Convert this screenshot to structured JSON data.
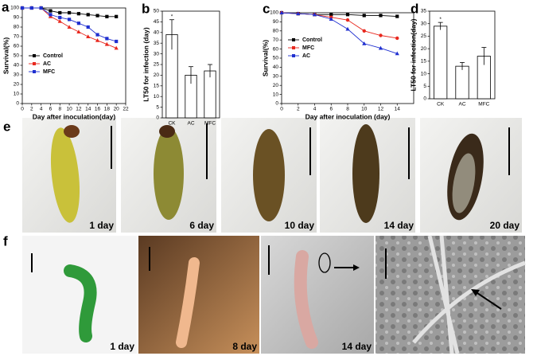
{
  "chart_data": [
    {
      "type": "line",
      "panel": "a",
      "xlabel": "Day after inoculation(day)",
      "ylabel": "Survival(%)",
      "x": [
        0,
        2,
        4,
        6,
        8,
        10,
        12,
        14,
        16,
        18,
        20
      ],
      "xlim": [
        0,
        22
      ],
      "xticks": [
        0,
        2,
        4,
        6,
        8,
        10,
        12,
        14,
        16,
        18,
        20,
        22
      ],
      "ylim": [
        0,
        100
      ],
      "yticks": [
        0,
        10,
        20,
        30,
        40,
        50,
        60,
        70,
        80,
        90,
        100
      ],
      "legend": "lower left",
      "series": [
        {
          "name": "Control",
          "color": "#000000",
          "marker": "square",
          "values": [
            100,
            100,
            100,
            97,
            95,
            95,
            94,
            93,
            92,
            91,
            91
          ]
        },
        {
          "name": "AC",
          "color": "#e8281e",
          "marker": "triangle",
          "values": [
            100,
            100,
            100,
            91,
            86,
            80,
            75,
            70,
            66,
            62,
            58
          ]
        },
        {
          "name": "MFC",
          "color": "#1f2fd0",
          "marker": "square",
          "values": [
            100,
            100,
            100,
            93,
            90,
            88,
            84,
            80,
            72,
            68,
            65
          ]
        }
      ]
    },
    {
      "type": "bar",
      "panel": "b",
      "ylabel": "LT50 for infection (day)",
      "categories": [
        "CK",
        "AC",
        "MFC"
      ],
      "values": [
        39,
        20,
        22
      ],
      "errors": [
        7,
        4,
        3
      ],
      "color": "#ffffff",
      "annotation": "*",
      "ylim": [
        0,
        50
      ],
      "yticks": [
        0,
        5,
        10,
        15,
        20,
        25,
        30,
        35,
        40,
        45,
        50
      ]
    },
    {
      "type": "line",
      "panel": "c",
      "xlabel": "Day after inoculation (day)",
      "ylabel": "Survival(%)",
      "x": [
        0,
        2,
        4,
        6,
        8,
        10,
        12,
        14
      ],
      "xlim": [
        0,
        16
      ],
      "xticks": [
        0,
        2,
        4,
        6,
        8,
        10,
        12,
        14
      ],
      "ylim": [
        0,
        100
      ],
      "yticks": [
        0,
        10,
        20,
        30,
        40,
        50,
        60,
        70,
        80,
        90,
        100
      ],
      "legend": "center left",
      "series": [
        {
          "name": "Control",
          "color": "#000000",
          "marker": "square",
          "values": [
            100,
            99,
            98,
            98,
            98,
            97,
            97,
            96
          ]
        },
        {
          "name": "MFC",
          "color": "#e8281e",
          "marker": "circle",
          "values": [
            100,
            99,
            98,
            95,
            92,
            80,
            75,
            72
          ]
        },
        {
          "name": "AC",
          "color": "#1f2fd0",
          "marker": "triangle",
          "values": [
            100,
            99,
            98,
            93,
            82,
            66,
            61,
            55
          ]
        }
      ]
    },
    {
      "type": "bar",
      "panel": "d",
      "ylabel": "LT50 for infection(day)",
      "categories": [
        "CK",
        "AC",
        "MFC"
      ],
      "values": [
        29,
        13,
        17
      ],
      "errors": [
        1.5,
        1.5,
        3.5
      ],
      "color": "#ffffff",
      "annotation": "*",
      "ylim": [
        0,
        35
      ],
      "yticks": [
        0,
        5,
        10,
        15,
        20,
        25,
        30,
        35
      ]
    }
  ],
  "photos": {
    "e": {
      "panel": "e",
      "labels": [
        "1 day",
        "6 day",
        "10 day",
        "14 day",
        "20 day"
      ]
    },
    "f": {
      "panel": "f",
      "labels": [
        "1 day",
        "8 day",
        "14 day"
      ]
    }
  }
}
